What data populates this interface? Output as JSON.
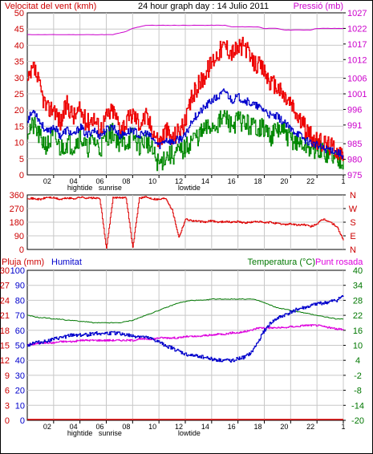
{
  "header": {
    "wind_label": "Velocitat del vent (kmh)",
    "title": "24 hour graph day : 14 Julio 2011",
    "pressure_label": "Pressió (mb)"
  },
  "labels_mid": {
    "humidity": "Humitat",
    "rain": "Pluja (mm)",
    "temp": "Temperatura (°C)",
    "dew": "Punt rosada"
  },
  "colors": {
    "wind_gust": "#ee0000",
    "wind_avg": "#0000cc",
    "wind_min": "#008800",
    "pressure": "#cc00cc",
    "direction": "#dd0000",
    "humidity": "#0000cc",
    "temperature": "#007700",
    "dewpoint": "#dd00dd",
    "rain": "#dd0000",
    "grid": "#c8c8c8",
    "axis_left_top": "#cc0000",
    "axis_right_top": "#cc00cc",
    "axis_humidity": "#0000cc",
    "axis_temp": "#007700"
  },
  "time_axis": {
    "ticks": [
      "02",
      "04",
      "06",
      "08",
      "10",
      "12",
      "14",
      "16",
      "18",
      "20",
      "22",
      "1"
    ],
    "sub_labels": [
      {
        "text": "hightide",
        "x": 4
      },
      {
        "text": "sunrise",
        "x": 6.3
      },
      {
        "text": "lowtide",
        "x": 12.3
      }
    ]
  },
  "chart_data": [
    {
      "type": "line",
      "title": "24 hour graph day : 14 Julio 2011",
      "ylabel": "Velocitat del vent (kmh)",
      "ylabel_right": "Pressió (mb)",
      "ylim": [
        0,
        50
      ],
      "ylim_right": [
        975,
        1027
      ],
      "left_ticks": [
        0,
        5,
        10,
        15,
        20,
        25,
        30,
        35,
        40,
        45,
        50
      ],
      "right_ticks": [
        975,
        980,
        985,
        991,
        996,
        1001,
        1006,
        1012,
        1017,
        1022,
        1027
      ],
      "x": [
        0,
        0.5,
        1,
        1.5,
        2,
        2.5,
        3,
        3.5,
        4,
        4.5,
        5,
        5.5,
        6,
        6.5,
        7,
        7.5,
        8,
        8.5,
        9,
        9.5,
        10,
        10.5,
        11,
        11.5,
        12,
        12.5,
        13,
        13.5,
        14,
        14.5,
        15,
        15.5,
        16,
        16.5,
        17,
        17.5,
        18,
        18.5,
        19,
        19.5,
        20,
        20.5,
        21,
        21.5,
        22,
        22.5,
        23,
        23.5,
        24
      ],
      "series": [
        {
          "name_key": "gust",
          "values": [
            28,
            33,
            26,
            20,
            21,
            16,
            22,
            18,
            20,
            16,
            18,
            14,
            18,
            20,
            15,
            16,
            19,
            16,
            18,
            14,
            10,
            14,
            11,
            14,
            16,
            24,
            28,
            31,
            35,
            38,
            40,
            38,
            39,
            40,
            35,
            34,
            32,
            28,
            27,
            24,
            22,
            18,
            15,
            12,
            10,
            10,
            9,
            8,
            6
          ]
        },
        {
          "name_key": "avg",
          "values": [
            17,
            20,
            16,
            13,
            15,
            12,
            14,
            12,
            15,
            12,
            14,
            12,
            14,
            15,
            12,
            13,
            14,
            12,
            13,
            11,
            9,
            11,
            10,
            11,
            12,
            17,
            19,
            21,
            23,
            24,
            26,
            23,
            24,
            23,
            22,
            21,
            20,
            18,
            18,
            16,
            14,
            13,
            11,
            10,
            9,
            8,
            8,
            7,
            6
          ]
        },
        {
          "name_key": "min",
          "values": [
            14,
            15,
            11,
            9,
            12,
            8,
            10,
            9,
            12,
            8,
            11,
            8,
            12,
            13,
            10,
            10,
            12,
            9,
            11,
            7,
            3,
            6,
            6,
            7,
            8,
            11,
            12,
            14,
            15,
            16,
            18,
            15,
            17,
            16,
            15,
            15,
            14,
            12,
            14,
            13,
            11,
            10,
            9,
            8,
            8,
            7,
            6,
            5,
            5
          ]
        },
        {
          "name_key": "pressure",
          "axis": "right",
          "values": [
            1020,
            1020,
            1020,
            1020,
            1020,
            1020,
            1020,
            1020,
            1020,
            1020,
            1020,
            1020,
            1020,
            1020,
            1020.5,
            1021,
            1022,
            1022.5,
            1023,
            1023,
            1023,
            1023,
            1023,
            1023,
            1023,
            1023,
            1023,
            1023,
            1023,
            1023,
            1023,
            1022.5,
            1022.5,
            1022.5,
            1022.5,
            1022.5,
            1022,
            1022,
            1022,
            1021.5,
            1021.5,
            1021.5,
            1021.5,
            1021.5,
            1022,
            1022,
            1022,
            1022,
            1022
          ]
        }
      ]
    },
    {
      "type": "line",
      "ylim": [
        0,
        360
      ],
      "left_ticks": [
        0,
        90,
        180,
        270,
        360
      ],
      "right_ticks": [
        "N",
        "E",
        "S",
        "W",
        "N"
      ],
      "x": [
        0,
        0.5,
        1,
        1.5,
        2,
        2.5,
        3,
        3.5,
        4,
        4.5,
        5,
        5.5,
        6,
        6.5,
        7,
        7.5,
        8,
        8.5,
        9,
        9.5,
        10,
        10.5,
        11,
        11.5,
        12,
        12.5,
        13,
        13.5,
        14,
        14.5,
        15,
        15.5,
        16,
        16.5,
        17,
        17.5,
        18,
        18.5,
        19,
        19.5,
        20,
        20.5,
        21,
        21.5,
        22,
        22.5,
        23,
        23.5,
        24
      ],
      "series": [
        {
          "name_key": "direction",
          "values": [
            340,
            335,
            330,
            345,
            340,
            330,
            340,
            335,
            345,
            340,
            340,
            335,
            5,
            340,
            345,
            340,
            10,
            340,
            345,
            335,
            330,
            340,
            260,
            80,
            200,
            190,
            185,
            180,
            190,
            180,
            185,
            180,
            185,
            175,
            180,
            185,
            175,
            180,
            170,
            165,
            170,
            160,
            165,
            150,
            170,
            200,
            180,
            150,
            60
          ]
        }
      ]
    },
    {
      "type": "line",
      "ylim": [
        -20,
        40
      ],
      "rain_ticks": [
        0,
        3,
        6,
        9,
        12,
        15,
        18,
        21,
        24,
        27,
        30
      ],
      "humidity_ticks": [
        0,
        10,
        20,
        30,
        40,
        50,
        60,
        70,
        80,
        90,
        100
      ],
      "temp_ticks": [
        -20,
        -14,
        -8,
        -2,
        4,
        10,
        16,
        22,
        28,
        34,
        40
      ],
      "x": [
        0,
        0.5,
        1,
        1.5,
        2,
        2.5,
        3,
        3.5,
        4,
        4.5,
        5,
        5.5,
        6,
        6.5,
        7,
        7.5,
        8,
        8.5,
        9,
        9.5,
        10,
        10.5,
        11,
        11.5,
        12,
        12.5,
        13,
        13.5,
        14,
        14.5,
        15,
        15.5,
        16,
        16.5,
        17,
        17.5,
        18,
        18.5,
        19,
        19.5,
        20,
        20.5,
        21,
        21.5,
        22,
        22.5,
        23,
        23.5,
        24
      ],
      "series": [
        {
          "name_key": "humidity",
          "axis": "humidity",
          "values": [
            50,
            52,
            52,
            53,
            54,
            55,
            56,
            57,
            57,
            57,
            58,
            58,
            58,
            58,
            58,
            57,
            56,
            56,
            55,
            54,
            52,
            50,
            48,
            46,
            44,
            43,
            43,
            42,
            41,
            40,
            40,
            40,
            41,
            42,
            45,
            52,
            60,
            65,
            68,
            70,
            72,
            74,
            75,
            76,
            78,
            78,
            79,
            80,
            83
          ]
        },
        {
          "name_key": "temperature",
          "axis": "temp",
          "values": [
            22,
            21.5,
            21,
            21,
            20.5,
            20.5,
            20,
            20,
            19.5,
            19.5,
            19,
            19,
            19,
            19,
            19,
            19.5,
            20,
            21,
            22,
            23,
            24,
            25,
            26,
            27,
            27.5,
            28,
            28,
            28,
            28.5,
            28.5,
            28.5,
            28.5,
            28.5,
            28.5,
            28.5,
            28,
            27,
            26,
            25,
            24.5,
            24,
            23.5,
            23,
            22.5,
            22,
            21.5,
            21,
            20.5,
            20.5
          ]
        },
        {
          "name_key": "dewpoint",
          "axis": "temp",
          "values": [
            10,
            10.5,
            11,
            11,
            11,
            11.5,
            11.5,
            11.5,
            12,
            12,
            12,
            12,
            12,
            12,
            12,
            12,
            12,
            12.5,
            12.5,
            12.5,
            13,
            13,
            13,
            13,
            13.5,
            13.5,
            13.5,
            14,
            14,
            14.5,
            14.5,
            15,
            15,
            15.5,
            16,
            17,
            17,
            17,
            17,
            17,
            17.5,
            17.5,
            18,
            18,
            18,
            17.5,
            17,
            16.5,
            16.5
          ]
        },
        {
          "name_key": "rain",
          "axis": "rain",
          "values": [
            0,
            0,
            0,
            0,
            0,
            0,
            0,
            0,
            0,
            0,
            0,
            0,
            0,
            0,
            0,
            0,
            0,
            0,
            0,
            0,
            0,
            0,
            0,
            0,
            0,
            0,
            0,
            0,
            0,
            0,
            0,
            0,
            0,
            0,
            0,
            0,
            0,
            0,
            0,
            0,
            0,
            0,
            0,
            0,
            0,
            0,
            0,
            0,
            0
          ]
        }
      ]
    }
  ]
}
